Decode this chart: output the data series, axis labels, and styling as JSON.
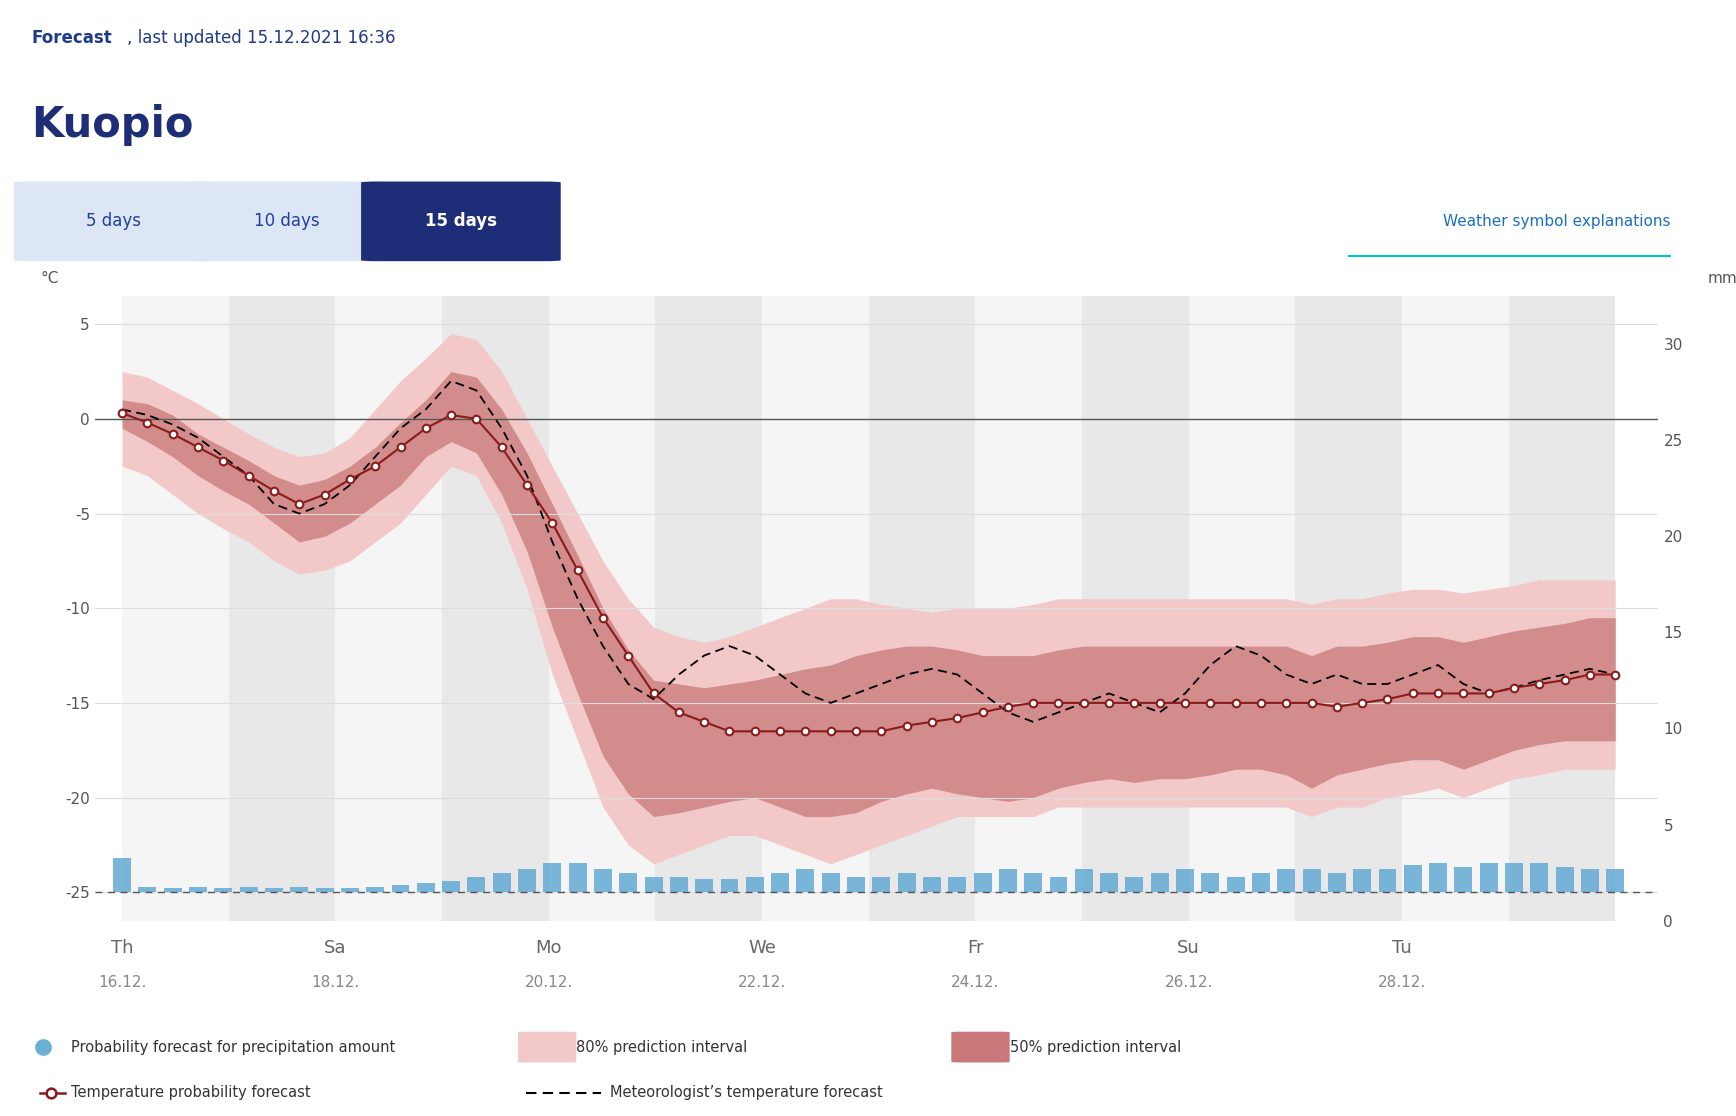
{
  "title_forecast": "Forecast",
  "title_updated": ", last updated 15.12.2021 16:36",
  "city": "Kuopio",
  "header_bg": "#e2eaf5",
  "tab_active_bg": "#1e2d78",
  "tab_active_text": "#ffffff",
  "tab_inactive_bg": "#dce6f5",
  "tab_inactive_text": "#2040a0",
  "ylabel_left": "°C",
  "ylabel_right": "mm",
  "ylim_left": [
    -26.5,
    6.5
  ],
  "ylim_right": [
    0,
    32.5
  ],
  "yticks_left": [
    5,
    0,
    -5,
    -10,
    -15,
    -20,
    -25
  ],
  "yticks_right": [
    30,
    25,
    20,
    15,
    10,
    5,
    0
  ],
  "x_day_labels": [
    "Th",
    "Sa",
    "Mo",
    "We",
    "Fr",
    "Su",
    "Tu"
  ],
  "x_date_labels": [
    "16.12.",
    "18.12.",
    "20.12.",
    "22.12.",
    "24.12.",
    "26.12.",
    "28.12."
  ],
  "x_day_positions": [
    0,
    4,
    8,
    12,
    16,
    20,
    24
  ],
  "temp_forecast": [
    0.3,
    -0.2,
    -0.8,
    -1.5,
    -2.2,
    -3.0,
    -3.8,
    -4.5,
    -4.0,
    -3.2,
    -2.5,
    -1.5,
    -0.5,
    0.2,
    0.0,
    -1.5,
    -3.5,
    -5.5,
    -8.0,
    -10.5,
    -12.5,
    -14.5,
    -15.5,
    -16.0,
    -16.5,
    -16.5,
    -16.5,
    -16.5,
    -16.5,
    -16.5,
    -16.5,
    -16.2,
    -16.0,
    -15.8,
    -15.5,
    -15.2,
    -15.0,
    -15.0,
    -15.0,
    -15.0,
    -15.0,
    -15.0,
    -15.0,
    -15.0,
    -15.0,
    -15.0,
    -15.0,
    -15.0,
    -15.2,
    -15.0,
    -14.8,
    -14.5,
    -14.5,
    -14.5,
    -14.5,
    -14.2,
    -14.0,
    -13.8,
    -13.5,
    -13.5
  ],
  "met_forecast": [
    0.5,
    0.2,
    -0.3,
    -1.0,
    -2.0,
    -3.0,
    -4.5,
    -5.0,
    -4.5,
    -3.5,
    -2.0,
    -0.5,
    0.5,
    2.0,
    1.5,
    -0.5,
    -3.0,
    -6.5,
    -9.5,
    -12.0,
    -14.0,
    -14.8,
    -13.5,
    -12.5,
    -12.0,
    -12.5,
    -13.5,
    -14.5,
    -15.0,
    -14.5,
    -14.0,
    -13.5,
    -13.2,
    -13.5,
    -14.5,
    -15.5,
    -16.0,
    -15.5,
    -15.0,
    -14.5,
    -15.0,
    -15.5,
    -14.5,
    -13.0,
    -12.0,
    -12.5,
    -13.5,
    -14.0,
    -13.5,
    -14.0,
    -14.0,
    -13.5,
    -13.0,
    -14.0,
    -14.5,
    -14.2,
    -13.8,
    -13.5,
    -13.2,
    -13.5
  ],
  "p80_upper": [
    2.5,
    2.2,
    1.5,
    0.8,
    0.0,
    -0.8,
    -1.5,
    -2.0,
    -1.8,
    -1.0,
    0.5,
    2.0,
    3.2,
    4.5,
    4.2,
    2.5,
    0.0,
    -2.5,
    -5.0,
    -7.5,
    -9.5,
    -11.0,
    -11.5,
    -11.8,
    -11.5,
    -11.0,
    -10.5,
    -10.0,
    -9.5,
    -9.5,
    -9.8,
    -10.0,
    -10.2,
    -10.0,
    -10.0,
    -10.0,
    -9.8,
    -9.5,
    -9.5,
    -9.5,
    -9.5,
    -9.5,
    -9.5,
    -9.5,
    -9.5,
    -9.5,
    -9.5,
    -9.8,
    -9.5,
    -9.5,
    -9.2,
    -9.0,
    -9.0,
    -9.2,
    -9.0,
    -8.8,
    -8.5,
    -8.5,
    -8.5,
    -8.5
  ],
  "p80_lower": [
    -2.5,
    -3.0,
    -4.0,
    -5.0,
    -5.8,
    -6.5,
    -7.5,
    -8.2,
    -8.0,
    -7.5,
    -6.5,
    -5.5,
    -4.0,
    -2.5,
    -3.0,
    -5.5,
    -9.0,
    -13.5,
    -17.0,
    -20.5,
    -22.5,
    -23.5,
    -23.0,
    -22.5,
    -22.0,
    -22.0,
    -22.5,
    -23.0,
    -23.5,
    -23.0,
    -22.5,
    -22.0,
    -21.5,
    -21.0,
    -21.0,
    -21.0,
    -21.0,
    -20.5,
    -20.5,
    -20.5,
    -20.5,
    -20.5,
    -20.5,
    -20.5,
    -20.5,
    -20.5,
    -20.5,
    -21.0,
    -20.5,
    -20.5,
    -20.0,
    -19.8,
    -19.5,
    -20.0,
    -19.5,
    -19.0,
    -18.8,
    -18.5,
    -18.5,
    -18.5
  ],
  "p50_upper": [
    1.0,
    0.8,
    0.2,
    -0.8,
    -1.5,
    -2.2,
    -3.0,
    -3.5,
    -3.2,
    -2.5,
    -1.5,
    -0.2,
    1.0,
    2.5,
    2.2,
    0.5,
    -1.8,
    -4.5,
    -7.2,
    -10.0,
    -12.2,
    -13.8,
    -14.0,
    -14.2,
    -14.0,
    -13.8,
    -13.5,
    -13.2,
    -13.0,
    -12.5,
    -12.2,
    -12.0,
    -12.0,
    -12.2,
    -12.5,
    -12.5,
    -12.5,
    -12.2,
    -12.0,
    -12.0,
    -12.0,
    -12.0,
    -12.0,
    -12.0,
    -12.0,
    -12.0,
    -12.0,
    -12.5,
    -12.0,
    -12.0,
    -11.8,
    -11.5,
    -11.5,
    -11.8,
    -11.5,
    -11.2,
    -11.0,
    -10.8,
    -10.5,
    -10.5
  ],
  "p50_lower": [
    -0.5,
    -1.2,
    -2.0,
    -3.0,
    -3.8,
    -4.5,
    -5.5,
    -6.5,
    -6.2,
    -5.5,
    -4.5,
    -3.5,
    -2.0,
    -1.2,
    -1.8,
    -4.0,
    -7.0,
    -11.0,
    -14.5,
    -17.8,
    -19.8,
    -21.0,
    -20.8,
    -20.5,
    -20.2,
    -20.0,
    -20.5,
    -21.0,
    -21.0,
    -20.8,
    -20.2,
    -19.8,
    -19.5,
    -19.8,
    -20.0,
    -20.2,
    -20.0,
    -19.5,
    -19.2,
    -19.0,
    -19.2,
    -19.0,
    -19.0,
    -18.8,
    -18.5,
    -18.5,
    -18.8,
    -19.5,
    -18.8,
    -18.5,
    -18.2,
    -18.0,
    -18.0,
    -18.5,
    -18.0,
    -17.5,
    -17.2,
    -17.0,
    -17.0,
    -17.0
  ],
  "precip": [
    1.8,
    0.3,
    0.2,
    0.3,
    0.2,
    0.3,
    0.2,
    0.3,
    0.2,
    0.2,
    0.3,
    0.4,
    0.5,
    0.6,
    0.8,
    1.0,
    1.2,
    1.5,
    1.5,
    1.2,
    1.0,
    0.8,
    0.8,
    0.7,
    0.7,
    0.8,
    1.0,
    1.2,
    1.0,
    0.8,
    0.8,
    1.0,
    0.8,
    0.8,
    1.0,
    1.2,
    1.0,
    0.8,
    1.2,
    1.0,
    0.8,
    1.0,
    1.2,
    1.0,
    0.8,
    1.0,
    1.2,
    1.2,
    1.0,
    1.2,
    1.2,
    1.4,
    1.5,
    1.3,
    1.5,
    1.5,
    1.5,
    1.3,
    1.2,
    1.2
  ],
  "color_80": "#f2c8c8",
  "color_50": "#c87878",
  "color_temp": "#8b1a1a",
  "color_met": "#000000",
  "color_precip": "#6baed6",
  "color_zero_line": "#555555",
  "color_grid": "#dddddd",
  "stripe_colors": [
    "#f5f5f5",
    "#e8e8e8"
  ],
  "legend_items": [
    "Probability forecast for precipitation amount",
    "80% prediction interval",
    "50% prediction interval",
    "Temperature probability forecast",
    "Meteorologist’s temperature forecast"
  ]
}
